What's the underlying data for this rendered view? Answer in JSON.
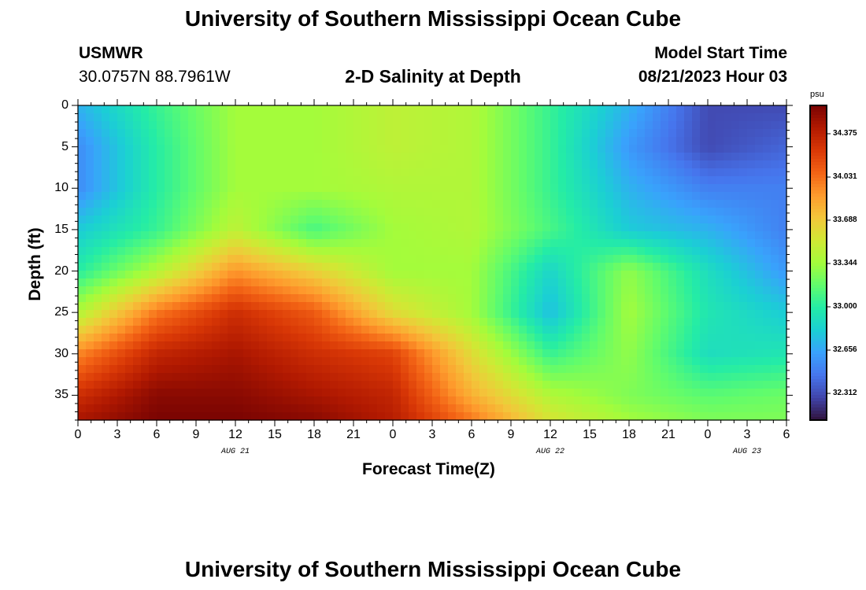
{
  "page": {
    "title": "University of Southern Mississippi Ocean Cube",
    "footer_title": "University of Southern Mississippi Ocean Cube",
    "station": "USMWR",
    "coordinates": "30.0757N  88.7961W",
    "plot_title": "2-D Salinity at Depth",
    "model_label": "Model Start Time",
    "model_time": "08/21/2023 Hour 03"
  },
  "chart_data": {
    "type": "heatmap",
    "title": "2-D Salinity at Depth",
    "xlabel": "Forecast Time(Z)",
    "ylabel": "Depth (ft)",
    "x_tick_labels": [
      "0",
      "3",
      "6",
      "9",
      "12",
      "15",
      "18",
      "21",
      "0",
      "3",
      "6",
      "9",
      "12",
      "15",
      "18",
      "21",
      "0",
      "3",
      "6"
    ],
    "x_hours": [
      0,
      3,
      6,
      9,
      12,
      15,
      18,
      21,
      24,
      27,
      30,
      33,
      36,
      39,
      42,
      45,
      48,
      51,
      54
    ],
    "x_date_labels": [
      {
        "label": "AUG 21",
        "hour": 12
      },
      {
        "label": "AUG 22",
        "hour": 36
      },
      {
        "label": "AUG 23",
        "hour": 51
      }
    ],
    "xlim": [
      0,
      54
    ],
    "y_ticks": [
      0,
      5,
      10,
      15,
      20,
      25,
      30,
      35
    ],
    "ylim": [
      0,
      38
    ],
    "y_inverted": true,
    "colorbar": {
      "unit": "psu",
      "ticks": [
        "34.375",
        "34.031",
        "33.688",
        "33.344",
        "33.000",
        "32.656",
        "32.312"
      ],
      "tick_values": [
        34.375,
        34.031,
        33.688,
        33.344,
        33.0,
        32.656,
        32.312
      ],
      "range": [
        32.1,
        34.6
      ],
      "colors": [
        "#30123b",
        "#4145ab",
        "#4675ed",
        "#39a2fc",
        "#1bcfd4",
        "#24eca6",
        "#61fc6c",
        "#a4fc3b",
        "#d1e834",
        "#f3c63a",
        "#fe9b2d",
        "#f36315",
        "#d93806",
        "#b11901",
        "#7a0402"
      ]
    },
    "anchor_hours": [
      0,
      6,
      12,
      18,
      24,
      30,
      36,
      42,
      48,
      54
    ],
    "anchor_depths": [
      0,
      5,
      10,
      15,
      20,
      25,
      30,
      35,
      38
    ],
    "salinity": [
      [
        32.7,
        33.05,
        33.35,
        33.35,
        33.45,
        33.4,
        33.05,
        32.7,
        32.3,
        32.3
      ],
      [
        32.55,
        33.0,
        33.35,
        33.35,
        33.45,
        33.4,
        33.05,
        32.6,
        32.3,
        32.4
      ],
      [
        32.55,
        33.0,
        33.35,
        33.35,
        33.4,
        33.4,
        33.05,
        32.7,
        32.5,
        32.5
      ],
      [
        32.8,
        33.05,
        33.45,
        33.1,
        33.35,
        33.4,
        33.1,
        32.8,
        32.7,
        32.5
      ],
      [
        33.0,
        33.4,
        33.9,
        33.65,
        33.35,
        33.35,
        32.85,
        33.3,
        32.9,
        32.6
      ],
      [
        33.4,
        34.0,
        34.3,
        34.1,
        33.6,
        33.35,
        32.75,
        33.35,
        32.95,
        32.8
      ],
      [
        33.95,
        34.35,
        34.45,
        34.3,
        34.2,
        33.6,
        33.05,
        33.3,
        32.9,
        32.95
      ],
      [
        34.3,
        34.55,
        34.55,
        34.45,
        34.35,
        33.8,
        33.4,
        33.25,
        33.15,
        33.2
      ],
      [
        34.45,
        34.6,
        34.6,
        34.55,
        34.4,
        34.0,
        33.55,
        33.35,
        33.25,
        33.25
      ]
    ]
  }
}
